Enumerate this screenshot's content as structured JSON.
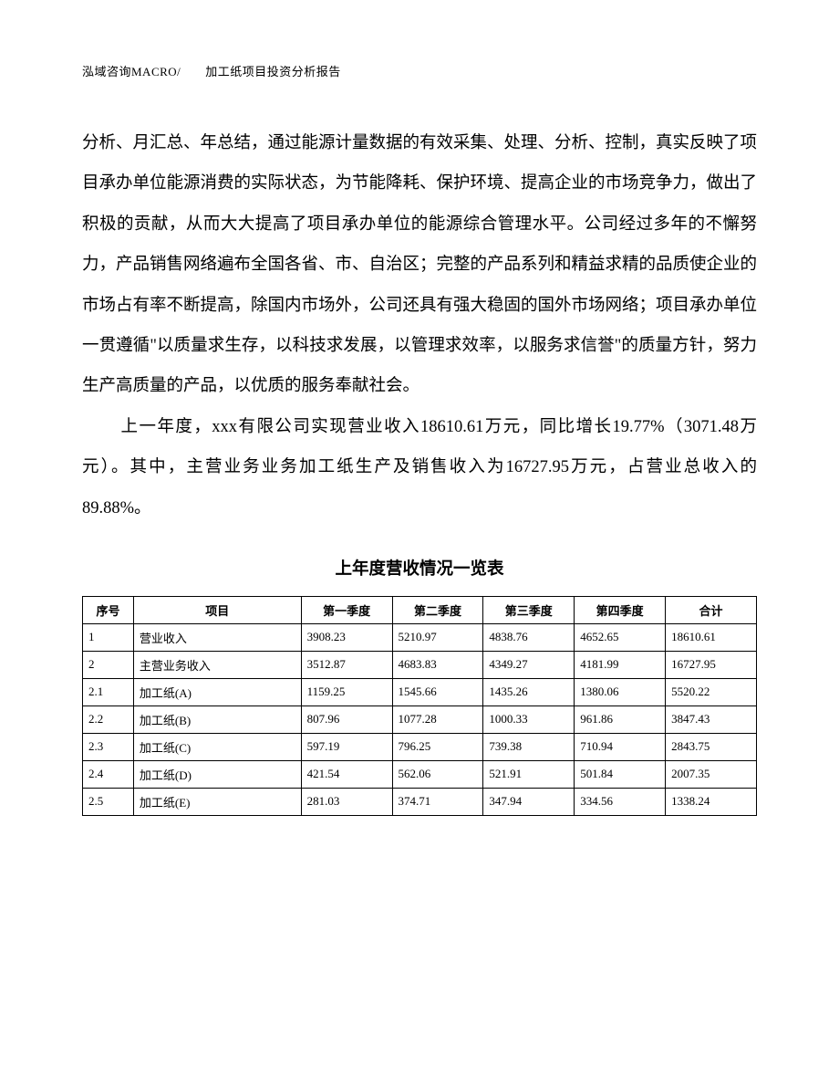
{
  "header": {
    "text": "泓域咨询MACRO/　　加工纸项目投资分析报告"
  },
  "paragraphs": {
    "p1": "分析、月汇总、年总结，通过能源计量数据的有效采集、处理、分析、控制，真实反映了项目承办单位能源消费的实际状态，为节能降耗、保护环境、提高企业的市场竞争力，做出了积极的贡献，从而大大提高了项目承办单位的能源综合管理水平。公司经过多年的不懈努力，产品销售网络遍布全国各省、市、自治区；完整的产品系列和精益求精的品质使企业的市场占有率不断提高，除国内市场外，公司还具有强大稳固的国外市场网络；项目承办单位一贯遵循\"以质量求生存，以科技求发展，以管理求效率，以服务求信誉\"的质量方针，努力生产高质量的产品，以优质的服务奉献社会。",
    "p2": "上一年度，xxx有限公司实现营业收入18610.61万元，同比增长19.77%（3071.48万元）。其中，主营业务业务加工纸生产及销售收入为16727.95万元，占营业总收入的89.88%。"
  },
  "table": {
    "title": "上年度营收情况一览表",
    "columns": [
      "序号",
      "项目",
      "第一季度",
      "第二季度",
      "第三季度",
      "第四季度",
      "合计"
    ],
    "rows": [
      [
        "1",
        "营业收入",
        "3908.23",
        "5210.97",
        "4838.76",
        "4652.65",
        "18610.61"
      ],
      [
        "2",
        "主营业务收入",
        "3512.87",
        "4683.83",
        "4349.27",
        "4181.99",
        "16727.95"
      ],
      [
        "2.1",
        "加工纸(A)",
        "1159.25",
        "1545.66",
        "1435.26",
        "1380.06",
        "5520.22"
      ],
      [
        "2.2",
        "加工纸(B)",
        "807.96",
        "1077.28",
        "1000.33",
        "961.86",
        "3847.43"
      ],
      [
        "2.3",
        "加工纸(C)",
        "597.19",
        "796.25",
        "739.38",
        "710.94",
        "2843.75"
      ],
      [
        "2.4",
        "加工纸(D)",
        "421.54",
        "562.06",
        "521.91",
        "501.84",
        "2007.35"
      ],
      [
        "2.5",
        "加工纸(E)",
        "281.03",
        "374.71",
        "347.94",
        "334.56",
        "1338.24"
      ]
    ]
  }
}
